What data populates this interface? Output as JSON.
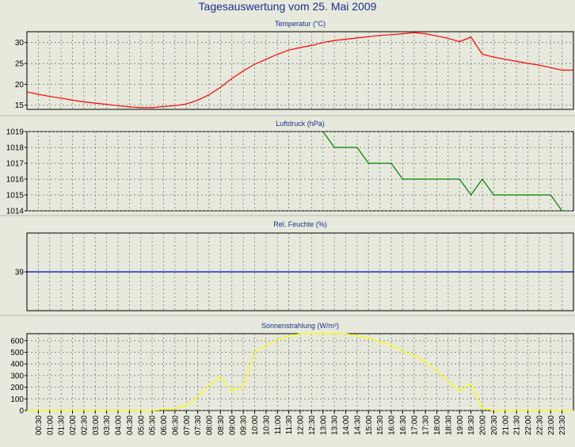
{
  "page": {
    "title": "Tagesauswertung vom 25. Mai 2009"
  },
  "chart_data": [
    {
      "type": "line",
      "title": "Temperatur (°C)",
      "color": "#ff0000",
      "ylim": [
        14,
        32.6
      ],
      "yticks": [
        15,
        20,
        25,
        30
      ],
      "x": [
        0,
        0.5,
        1,
        1.5,
        2,
        2.5,
        3,
        3.5,
        4,
        4.5,
        5,
        5.5,
        6,
        6.5,
        7,
        7.5,
        8,
        8.5,
        9,
        9.5,
        10,
        10.5,
        11,
        11.5,
        12,
        12.5,
        13,
        13.5,
        14,
        14.5,
        15,
        15.5,
        16,
        16.5,
        17,
        17.5,
        18,
        18.5,
        19,
        19.5,
        20,
        20.5,
        21,
        21.5,
        22,
        22.5,
        23,
        23.5,
        24
      ],
      "values": [
        18.2,
        17.6,
        17.1,
        16.7,
        16.2,
        15.8,
        15.5,
        15.2,
        14.9,
        14.6,
        14.4,
        14.4,
        14.7,
        14.9,
        15.3,
        16.2,
        17.5,
        19.3,
        21.4,
        23.2,
        24.8,
        26.0,
        27.2,
        28.2,
        28.8,
        29.3,
        30.0,
        30.5,
        30.8,
        31.1,
        31.4,
        31.7,
        31.9,
        32.1,
        32.4,
        32.1,
        31.6,
        31.0,
        30.2,
        31.3,
        27.2,
        26.5,
        26.0,
        25.5,
        25.0,
        24.6,
        24.0,
        23.4,
        23.4
      ]
    },
    {
      "type": "line",
      "title": "Luftdruck (hPa)",
      "color": "#008000",
      "ylim": [
        1014,
        1019
      ],
      "yticks": [
        1014,
        1015,
        1016,
        1017,
        1018,
        1019
      ],
      "x": [
        13,
        13.5,
        14,
        14.5,
        15,
        15.5,
        16,
        16.5,
        17,
        17.5,
        18,
        18.5,
        19,
        19.5,
        20,
        20.5,
        21,
        21.5,
        22,
        22.5,
        23,
        23.5
      ],
      "values": [
        1019,
        1018,
        1018,
        1018,
        1017,
        1017,
        1017,
        1016,
        1016,
        1016,
        1016,
        1016,
        1016,
        1015,
        1016,
        1015,
        1015,
        1015,
        1015,
        1015,
        1015,
        1014
      ]
    },
    {
      "type": "line",
      "title": "Rel. Feuchte (%)",
      "color": "#0000c0",
      "ylim": [
        38,
        40
      ],
      "yticks": [
        39
      ],
      "x": [
        0,
        24
      ],
      "values": [
        39,
        39
      ]
    },
    {
      "type": "line",
      "title": "Sonnenstrahlung (W/m²)",
      "color": "#ffff00",
      "ylim": [
        0,
        660
      ],
      "yticks": [
        0,
        100,
        200,
        300,
        400,
        500,
        600
      ],
      "x": [
        0,
        0.5,
        1,
        1.5,
        2,
        2.5,
        3,
        3.5,
        4,
        4.5,
        5,
        5.5,
        6,
        6.5,
        7,
        7.5,
        8,
        8.5,
        9,
        9.5,
        10,
        10.5,
        11,
        11.5,
        12,
        12.5,
        13,
        13.5,
        14,
        14.5,
        15,
        15.5,
        16,
        16.5,
        17,
        17.5,
        18,
        18.5,
        19,
        19.5,
        20,
        20.5,
        21,
        21.5,
        22,
        22.5,
        23,
        23.5,
        24
      ],
      "values": [
        0,
        0,
        0,
        0,
        0,
        0,
        0,
        0,
        0,
        0,
        0,
        0,
        10,
        20,
        40,
        120,
        220,
        290,
        170,
        200,
        500,
        560,
        610,
        640,
        660,
        660,
        660,
        660,
        660,
        640,
        620,
        590,
        560,
        510,
        470,
        420,
        340,
        250,
        170,
        230,
        20,
        0,
        0,
        0,
        0,
        0,
        0,
        0,
        0
      ]
    }
  ],
  "x_axis": {
    "min": 0,
    "max": 24,
    "tick_labels": [
      "00:30",
      "01:00",
      "01:30",
      "02:00",
      "02:30",
      "03:00",
      "03:30",
      "04:00",
      "04:30",
      "05:00",
      "05:30",
      "06:00",
      "06:30",
      "07:00",
      "07:30",
      "08:00",
      "08:30",
      "09:00",
      "09:30",
      "10:00",
      "10:30",
      "11:00",
      "11:30",
      "12:00",
      "12:30",
      "13:00",
      "13:30",
      "14:00",
      "14:30",
      "15:00",
      "15:30",
      "16:00",
      "16:30",
      "17:00",
      "17:30",
      "18:00",
      "18:30",
      "19:00",
      "19:30",
      "20:00",
      "20:30",
      "21:00",
      "21:30",
      "22:00",
      "22:30",
      "23:00",
      "23:30"
    ],
    "tick_values": [
      0.5,
      1,
      1.5,
      2,
      2.5,
      3,
      3.5,
      4,
      4.5,
      5,
      5.5,
      6,
      6.5,
      7,
      7.5,
      8,
      8.5,
      9,
      9.5,
      10,
      10.5,
      11,
      11.5,
      12,
      12.5,
      13,
      13.5,
      14,
      14.5,
      15,
      15.5,
      16,
      16.5,
      17,
      17.5,
      18,
      18.5,
      19,
      19.5,
      20,
      20.5,
      21,
      21.5,
      22,
      22.5,
      23,
      23.5
    ]
  }
}
